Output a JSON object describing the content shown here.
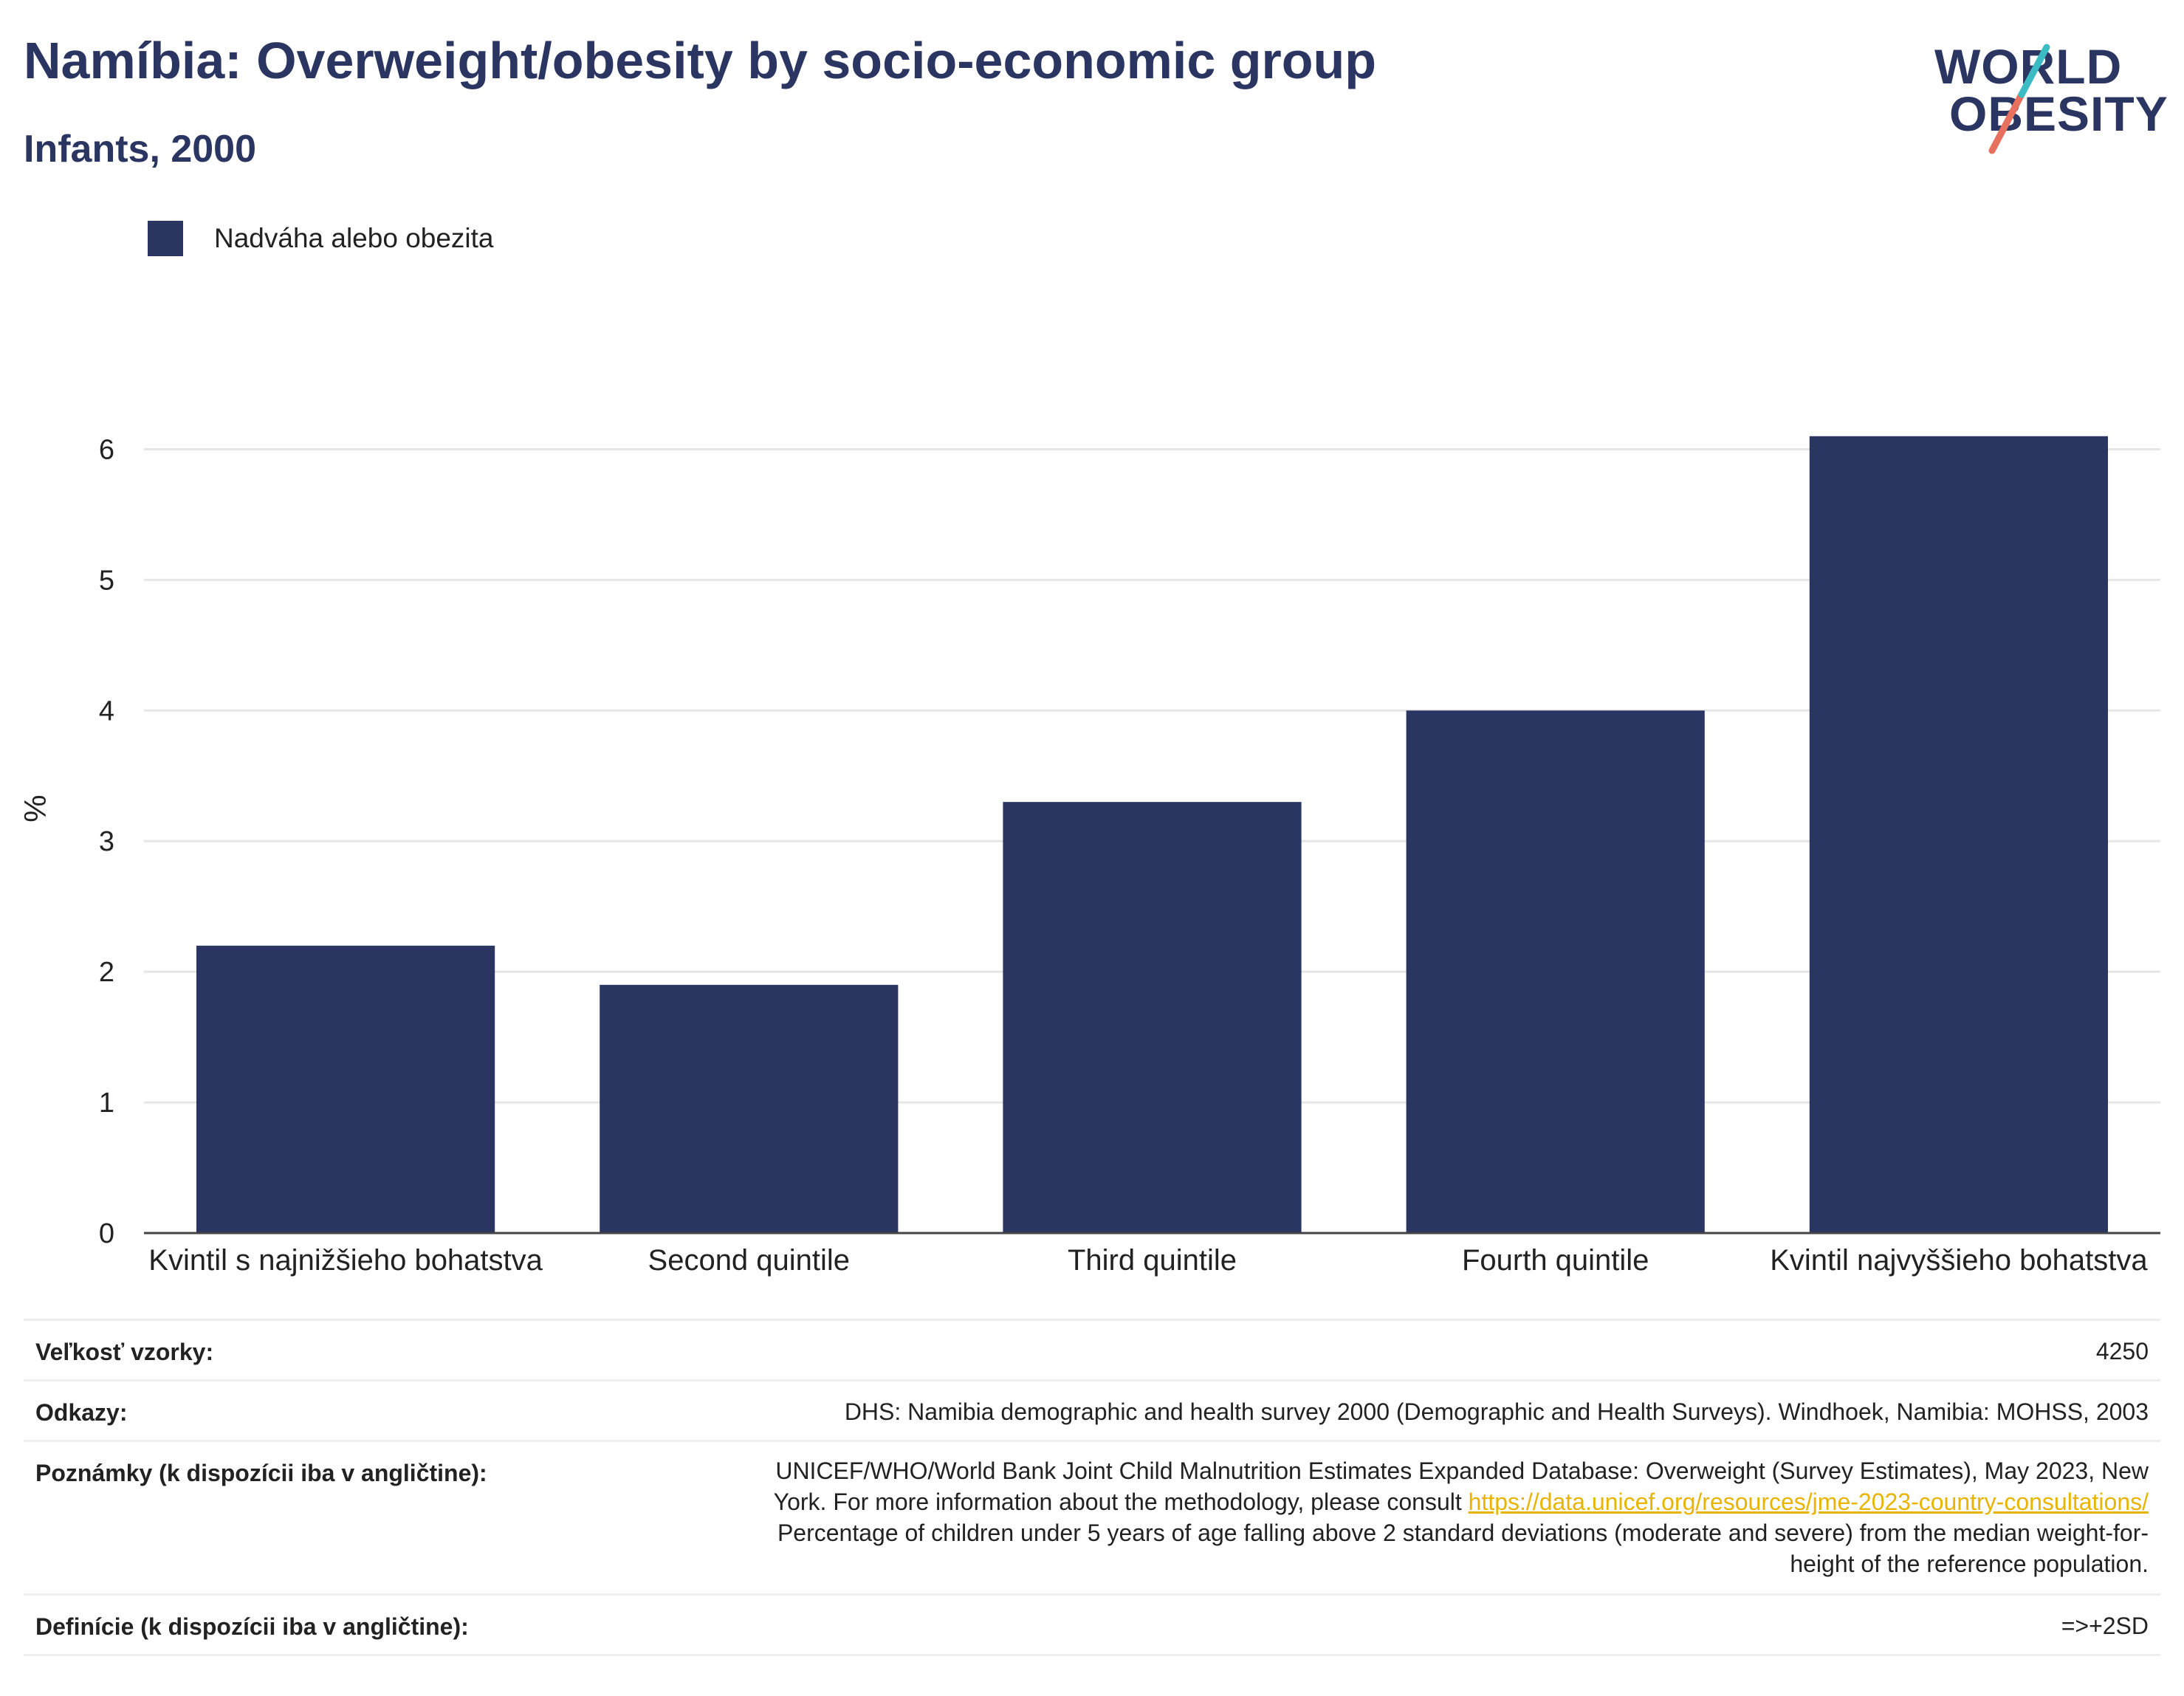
{
  "header": {
    "title": "Namíbia: Overweight/obesity by socio-economic group",
    "subtitle": "Infants, 2000"
  },
  "logo": {
    "line1": "WORLD",
    "line2": "OBESITY"
  },
  "colors": {
    "bar": "#2b3561",
    "title": "#2b3561",
    "grid": "#e6e6e6",
    "axis": "#444444",
    "link": "#e8b400",
    "logo_teal": "#3bbcc4",
    "logo_coral": "#e8705e"
  },
  "chart_data": {
    "type": "bar",
    "categories": [
      "Kvintil s najnižšieho bohatstva",
      "Second quintile",
      "Third quintile",
      "Fourth quintile",
      "Kvintil najvyššieho bohatstva"
    ],
    "series": [
      {
        "name": "Nadváha alebo obezita",
        "values": [
          2.2,
          1.9,
          3.3,
          4.0,
          6.1
        ]
      }
    ],
    "ylabel": "%",
    "xlabel": "",
    "ylim": [
      0,
      6.5
    ],
    "yticks": [
      0,
      1,
      2,
      3,
      4,
      5,
      6
    ],
    "grid": true,
    "legend": "top-left"
  },
  "meta": {
    "rows": [
      {
        "key": "Veľkosť vzorky:",
        "value": "4250"
      },
      {
        "key": "Odkazy:",
        "value": "DHS: Namibia demographic and health survey 2000 (Demographic and Health Surveys). Windhoek, Namibia: MOHSS, 2003"
      },
      {
        "key": "Poznámky (k dispozícii iba v angličtine):",
        "value_line1": "UNICEF/WHO/World Bank Joint Child Malnutrition Estimates Expanded Database: Overweight (Survey Estimates), May 2023, New",
        "value_line2_pre": "York. For more information about the methodology, please consult ",
        "value_link": "https://data.unicef.org/resources/jme-2023-country-consultations/",
        "value_line3": "Percentage of children under 5 years of age falling above 2 standard deviations (moderate and severe) from the median weight-for-",
        "value_line4": "height of the reference population."
      },
      {
        "key": "Definície (k dispozícii iba v angličtine):",
        "value": "=>+2SD"
      }
    ]
  }
}
